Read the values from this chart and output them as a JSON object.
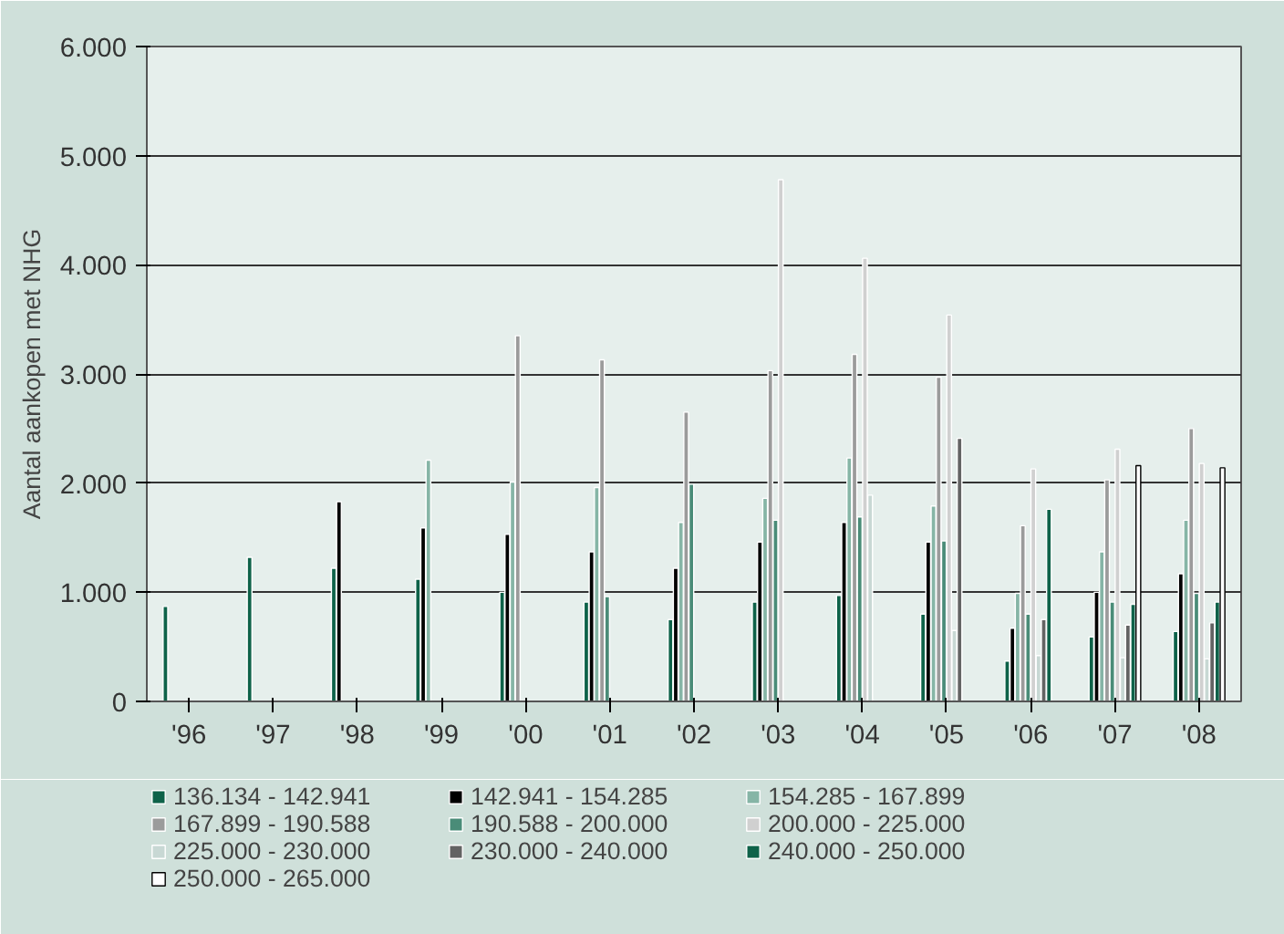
{
  "chart_data": {
    "type": "bar",
    "ylabel": "Aantal aankopen met NHG",
    "categories": [
      "'96",
      "'97",
      "'98",
      "'99",
      "'00",
      "'01",
      "'02",
      "'03",
      "'04",
      "'05",
      "'06",
      "'07",
      "'08"
    ],
    "ylim": [
      0,
      6000
    ],
    "yticks": [
      {
        "value": 0,
        "label": "0"
      },
      {
        "value": 1000,
        "label": "1.000"
      },
      {
        "value": 2000,
        "label": "2.000"
      },
      {
        "value": 3000,
        "label": "3.000"
      },
      {
        "value": 4000,
        "label": "4.000"
      },
      {
        "value": 5000,
        "label": "5.000"
      },
      {
        "value": 6000,
        "label": "6.000"
      }
    ],
    "grid": "y",
    "legend": "bottom",
    "series": [
      {
        "name": "136.134 - 142.941",
        "color": "#0e6249",
        "values": [
          870,
          1320,
          1220,
          1120,
          1000,
          910,
          750,
          910,
          970,
          800,
          370,
          590,
          640
        ]
      },
      {
        "name": "142.941 - 154.285",
        "color": "#000000",
        "values": [
          null,
          null,
          1830,
          1590,
          1530,
          1370,
          1220,
          1460,
          1640,
          1460,
          670,
          1000,
          1170
        ]
      },
      {
        "name": "154.285 - 167.899",
        "color": "#86b5a6",
        "values": [
          null,
          null,
          null,
          2210,
          2010,
          1960,
          1640,
          1860,
          2230,
          1790,
          990,
          1370,
          1660
        ]
      },
      {
        "name": "167.899 - 190.588",
        "color": "#9b9b9b",
        "values": [
          null,
          null,
          null,
          null,
          3350,
          3130,
          2650,
          3030,
          3180,
          2970,
          1610,
          2030,
          2500
        ]
      },
      {
        "name": "190.588 - 200.000",
        "color": "#4a8c78",
        "values": [
          null,
          null,
          null,
          null,
          null,
          960,
          1990,
          1660,
          1690,
          1470,
          800,
          910,
          990
        ]
      },
      {
        "name": "200.000 - 225.000",
        "color": "#d0d0d0",
        "values": [
          null,
          null,
          null,
          null,
          null,
          null,
          null,
          4780,
          4060,
          3540,
          2130,
          2310,
          2180
        ]
      },
      {
        "name": "225.000 - 230.000",
        "color": "#c8d8d4",
        "values": [
          null,
          null,
          null,
          null,
          null,
          null,
          null,
          null,
          1890,
          650,
          420,
          400,
          390
        ]
      },
      {
        "name": "230.000 - 240.000",
        "color": "#636363",
        "values": [
          null,
          null,
          null,
          null,
          null,
          null,
          null,
          null,
          null,
          2410,
          750,
          700,
          720
        ]
      },
      {
        "name": "240.000 - 250.000",
        "color": "#0e6249",
        "values": [
          null,
          null,
          null,
          null,
          null,
          null,
          null,
          null,
          null,
          null,
          1760,
          890,
          910
        ]
      },
      {
        "name": "250.000 - 265.000",
        "color": "#ffffff",
        "values": [
          null,
          null,
          null,
          null,
          null,
          null,
          null,
          null,
          null,
          null,
          null,
          2160,
          2140
        ]
      }
    ]
  }
}
